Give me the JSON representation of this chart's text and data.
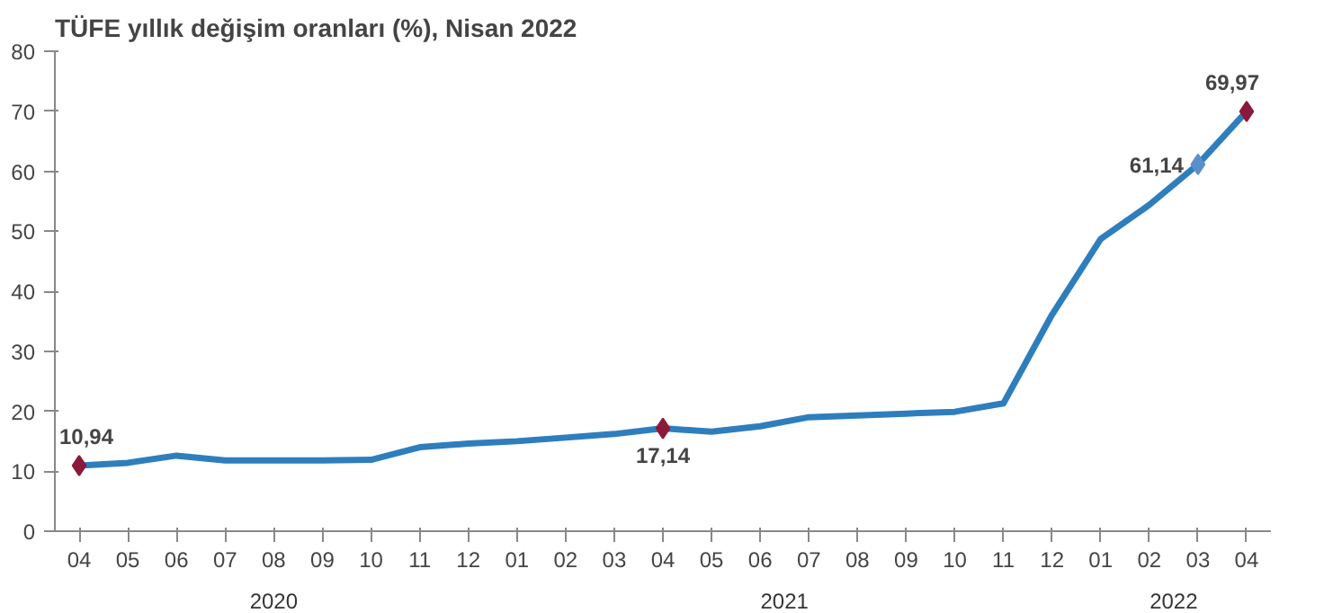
{
  "chart_data": {
    "type": "line",
    "title": "TÜFE yıllık değişim oranları (%), Nisan 2022",
    "categories": [
      "04",
      "05",
      "06",
      "07",
      "08",
      "09",
      "10",
      "11",
      "12",
      "01",
      "02",
      "03",
      "04",
      "05",
      "06",
      "07",
      "08",
      "09",
      "10",
      "11",
      "12",
      "01",
      "02",
      "03",
      "04"
    ],
    "annotations": [
      "2020",
      "2021",
      "2022"
    ],
    "series": [
      {
        "color": "#2e7ebd",
        "marker": "none",
        "values": [
          10.94,
          11.4,
          12.6,
          11.8,
          11.8,
          11.8,
          11.9,
          14.0,
          14.6,
          15.0,
          15.6,
          16.2,
          17.14,
          16.6,
          17.5,
          19.0,
          19.3,
          19.6,
          19.9,
          21.3,
          36.1,
          48.7,
          54.4,
          61.14,
          69.97
        ]
      },
      {
        "type": "scatter",
        "marker": "diamond",
        "colors": [
          "#8b1a3a",
          null,
          null,
          null,
          null,
          null,
          null,
          null,
          null,
          null,
          null,
          null,
          "#8b1a3a",
          null,
          null,
          null,
          null,
          null,
          null,
          null,
          null,
          null,
          null,
          "#5b8fc9",
          "#8b1a3a"
        ],
        "values": [
          10.94,
          null,
          null,
          null,
          null,
          null,
          null,
          null,
          null,
          null,
          null,
          null,
          17.14,
          null,
          null,
          null,
          null,
          null,
          null,
          null,
          null,
          null,
          null,
          61.14,
          69.97
        ],
        "value_labels": [
          "10,94",
          null,
          null,
          null,
          null,
          null,
          null,
          null,
          null,
          null,
          null,
          null,
          "17,14",
          null,
          null,
          null,
          null,
          null,
          null,
          null,
          null,
          null,
          null,
          "61,14",
          "69,97"
        ]
      }
    ],
    "ylim": [
      0,
      80
    ],
    "yticks": [
      0,
      10,
      20,
      30,
      40,
      50,
      60,
      70,
      80
    ],
    "grid": false
  }
}
